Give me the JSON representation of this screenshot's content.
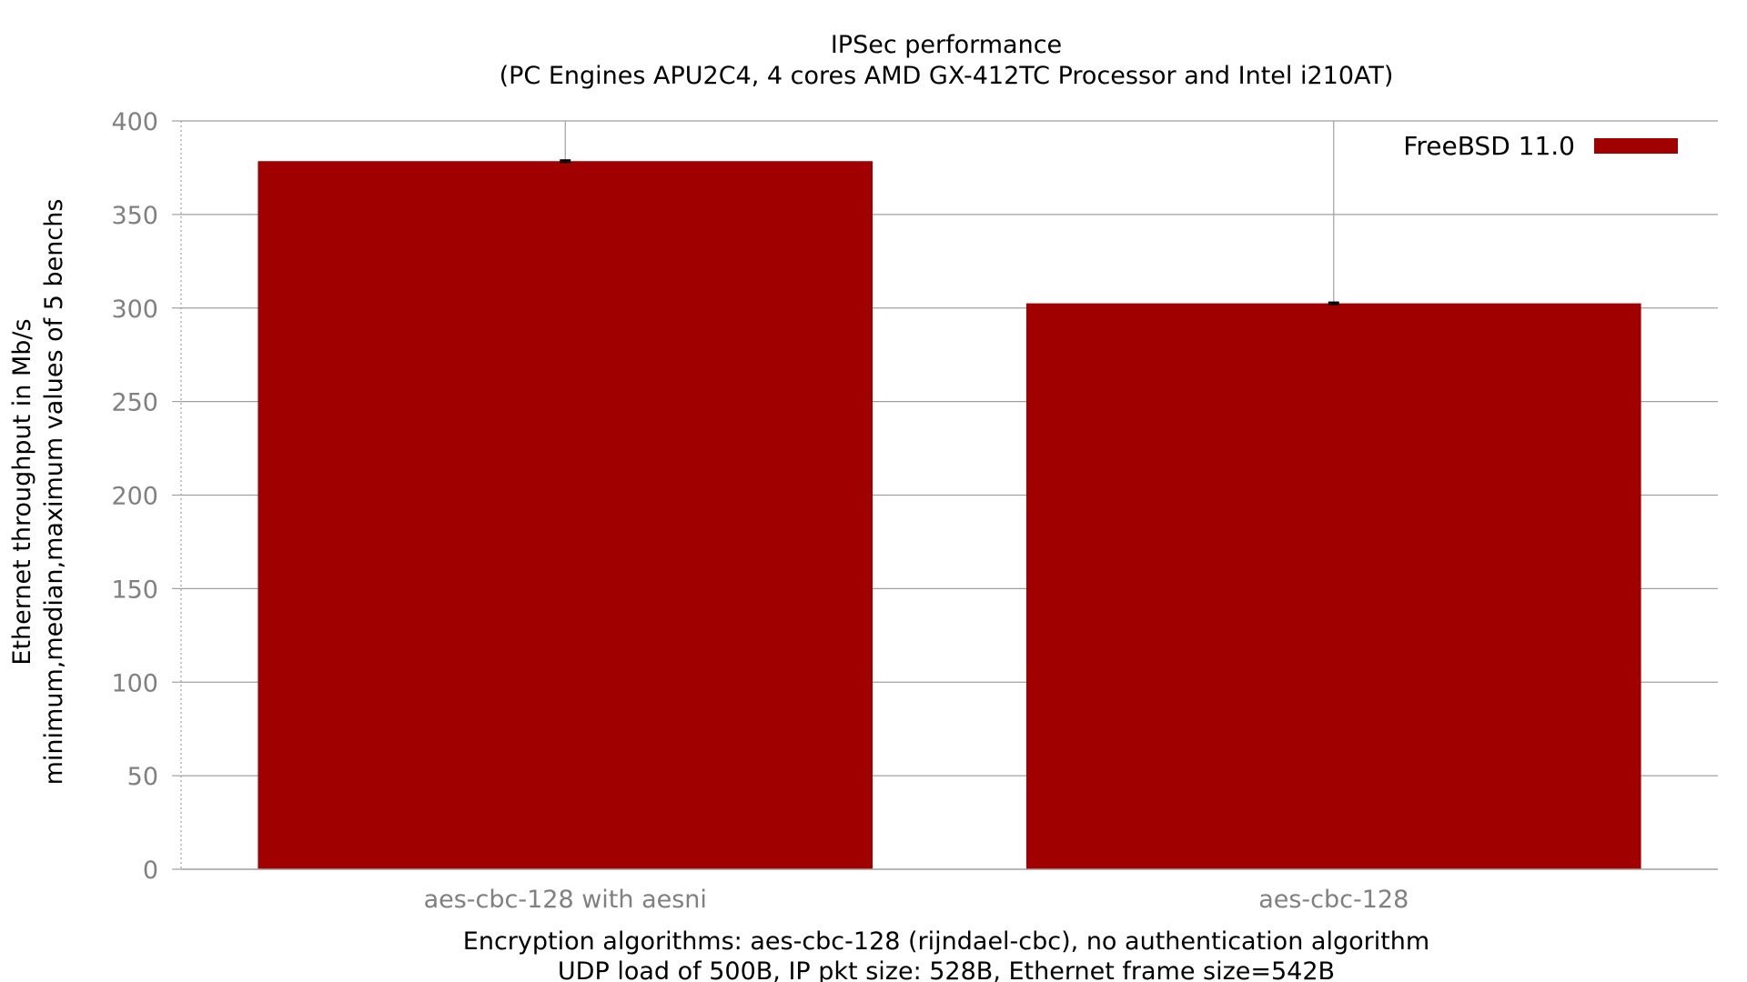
{
  "chart_data": {
    "type": "bar",
    "title": "IPSec performance",
    "subtitle": "(PC Engines APU2C4, 4 cores AMD GX-412TC Processor and Intel i210AT)",
    "categories": [
      "aes-cbc-128 with aesni",
      "aes-cbc-128"
    ],
    "series": [
      {
        "name": "FreeBSD 11.0",
        "color": "#a00000",
        "values": [
          378.5,
          302.5
        ],
        "error_min": [
          378,
          302
        ],
        "error_max": [
          379,
          303
        ]
      }
    ],
    "ylabel_lines": [
      "Ethernet throughput in Mb/s",
      "minimum,median,maximum values of 5 benchs"
    ],
    "xlabel_lines": [
      "Encryption algorithms: aes-cbc-128 (rijndael-cbc), no authentication algorithm",
      "UDP load of 500B, IP pkt size: 528B, Ethernet frame size=542B"
    ],
    "ylim": [
      0,
      400
    ],
    "yticks": [
      0,
      50,
      100,
      150,
      200,
      250,
      300,
      350,
      400
    ],
    "grid": true,
    "legend_position": "top-right",
    "colors": {
      "bar": "#a00000",
      "grid": "#a0a0a0",
      "tick_text": "#808080",
      "text": "#000000"
    }
  }
}
